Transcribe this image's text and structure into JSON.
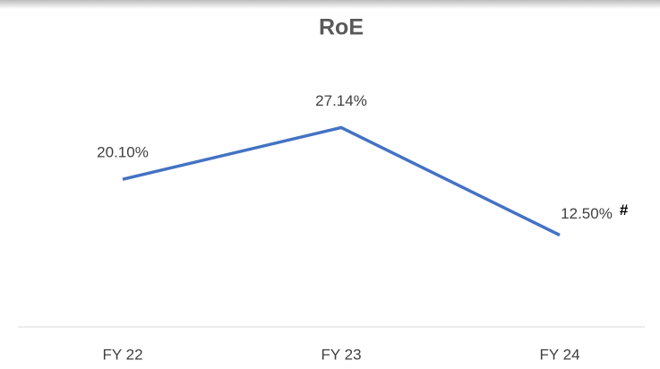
{
  "chart_data": {
    "type": "line",
    "title": "RoE",
    "categories": [
      "FY 22",
      "FY 23",
      "FY 24"
    ],
    "series": [
      {
        "name": "RoE",
        "color": "#4472c4",
        "values": [
          20.1,
          27.14,
          12.5
        ],
        "value_labels": [
          "20.10%",
          "27.14%",
          "12.50%"
        ]
      }
    ],
    "ylim": [
      0,
      35
    ],
    "annotation": "#"
  }
}
